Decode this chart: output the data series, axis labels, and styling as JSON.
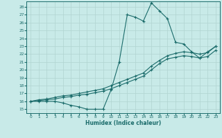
{
  "background_color": "#c8eae8",
  "grid_color": "#b0d4d0",
  "line_color": "#1a6b6a",
  "marker_color": "#1a6b6a",
  "xlabel": "Humidex (Indice chaleur)",
  "xlim": [
    -0.5,
    23.5
  ],
  "ylim": [
    14.5,
    28.7
  ],
  "yticks": [
    15,
    16,
    17,
    18,
    19,
    20,
    21,
    22,
    23,
    24,
    25,
    26,
    27,
    28
  ],
  "xticks": [
    0,
    1,
    2,
    3,
    4,
    5,
    6,
    7,
    8,
    9,
    10,
    11,
    12,
    13,
    14,
    15,
    16,
    17,
    18,
    19,
    20,
    21,
    22,
    23
  ],
  "series1_x": [
    0,
    1,
    2,
    3,
    4,
    5,
    6,
    7,
    8,
    9,
    10,
    11,
    12,
    13,
    14,
    15,
    16,
    17,
    18,
    19,
    20,
    21,
    22,
    23
  ],
  "series1_y": [
    16.0,
    16.0,
    16.0,
    16.0,
    15.8,
    15.5,
    15.3,
    15.0,
    15.0,
    15.0,
    17.5,
    21.0,
    27.0,
    26.7,
    26.2,
    28.5,
    27.5,
    26.5,
    23.5,
    23.3,
    22.3,
    21.5,
    22.3,
    23.0
  ],
  "series2_x": [
    0,
    1,
    2,
    3,
    4,
    5,
    6,
    7,
    8,
    9,
    10,
    11,
    12,
    13,
    14,
    15,
    16,
    17,
    18,
    19,
    20,
    21,
    22,
    23
  ],
  "series2_y": [
    16.0,
    16.2,
    16.3,
    16.5,
    16.7,
    16.8,
    17.0,
    17.2,
    17.4,
    17.6,
    18.0,
    18.4,
    18.8,
    19.2,
    19.6,
    20.5,
    21.2,
    21.8,
    22.1,
    22.3,
    22.2,
    22.0,
    22.2,
    23.0
  ],
  "series3_x": [
    0,
    1,
    2,
    3,
    4,
    5,
    6,
    7,
    8,
    9,
    10,
    11,
    12,
    13,
    14,
    15,
    16,
    17,
    18,
    19,
    20,
    21,
    22,
    23
  ],
  "series3_y": [
    16.0,
    16.1,
    16.2,
    16.3,
    16.5,
    16.6,
    16.8,
    16.9,
    17.1,
    17.3,
    17.6,
    18.0,
    18.4,
    18.8,
    19.2,
    20.0,
    20.8,
    21.4,
    21.6,
    21.8,
    21.7,
    21.5,
    21.7,
    22.5
  ],
  "figsize": [
    3.2,
    2.0
  ],
  "dpi": 100
}
